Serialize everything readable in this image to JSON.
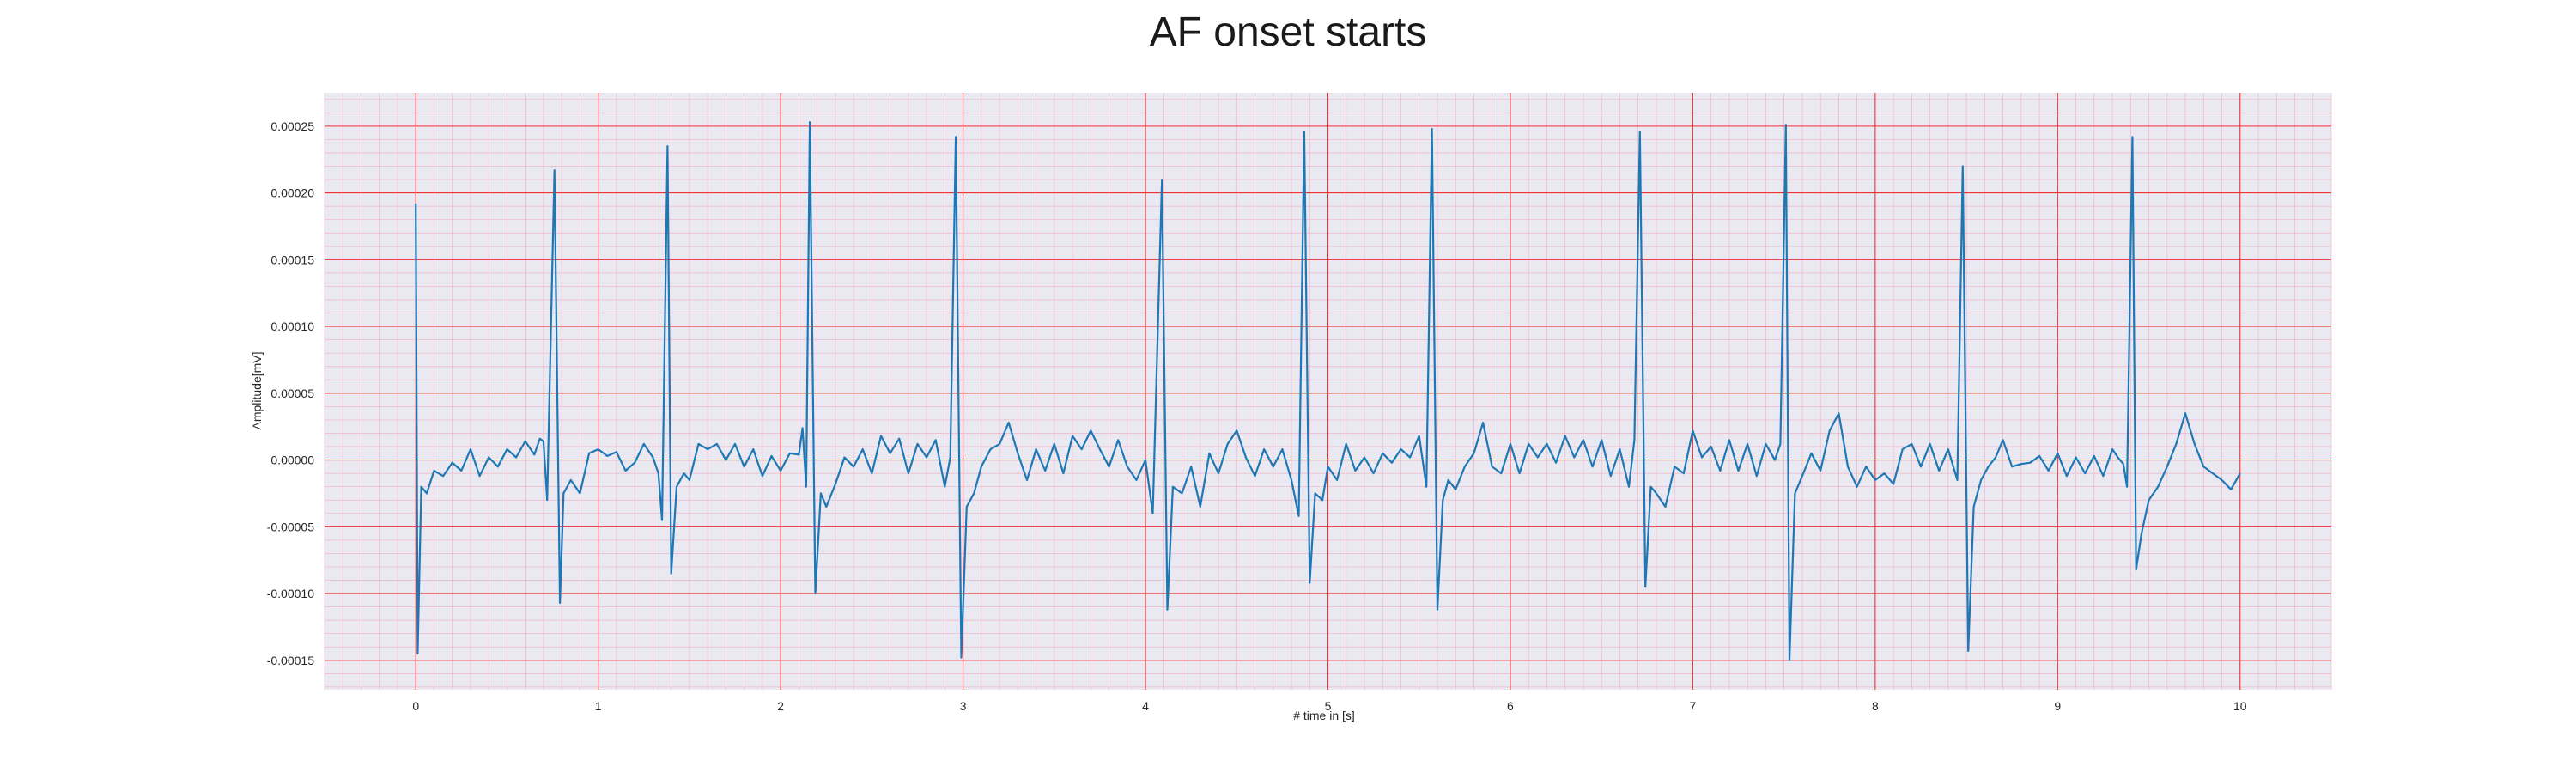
{
  "chart_data": {
    "type": "line",
    "title": "AF onset starts",
    "xlabel": "# time in [s]",
    "ylabel": "Amplitude[mV]",
    "xlim": [
      -0.5,
      10.5
    ],
    "ylim": [
      -0.000172,
      0.000275
    ],
    "x_ticks": [
      0,
      1,
      2,
      3,
      4,
      5,
      6,
      7,
      8,
      9,
      10
    ],
    "x_tick_labels": [
      "0",
      "1",
      "2",
      "3",
      "4",
      "5",
      "6",
      "7",
      "8",
      "9",
      "10"
    ],
    "y_ticks": [
      -0.00015,
      -0.0001,
      -5e-05,
      0.0,
      5e-05,
      0.0001,
      0.00015,
      0.0002,
      0.00025
    ],
    "y_tick_labels": [
      "-0.00015",
      "-0.00010",
      "-0.00005",
      "0.00000",
      "0.00005",
      "0.00010",
      "0.00015",
      "0.00020",
      "0.00025"
    ],
    "grid": {
      "major": true,
      "minor": true,
      "major_color": "#ee3333",
      "minor_color": "#f2a3b5",
      "background": "#eae9f2"
    },
    "colors": {
      "line": "#1f77b4"
    },
    "series": [
      {
        "points": [
          [
            0.0,
            0.000192
          ],
          [
            0.01,
            -0.000145
          ],
          [
            0.03,
            -2e-05
          ],
          [
            0.06,
            -2.5e-05
          ],
          [
            0.1,
            -8e-06
          ],
          [
            0.15,
            -1.2e-05
          ],
          [
            0.2,
            -2e-06
          ],
          [
            0.25,
            -8e-06
          ],
          [
            0.3,
            8e-06
          ],
          [
            0.35,
            -1.2e-05
          ],
          [
            0.4,
            2e-06
          ],
          [
            0.45,
            -5e-06
          ],
          [
            0.5,
            8e-06
          ],
          [
            0.55,
            2e-06
          ],
          [
            0.6,
            1.4e-05
          ],
          [
            0.65,
            4e-06
          ],
          [
            0.68,
            1.6e-05
          ],
          [
            0.7,
            1.4e-05
          ],
          [
            0.72,
            -3e-05
          ],
          [
            0.76,
            0.000217
          ],
          [
            0.79,
            -0.000107
          ],
          [
            0.81,
            -2.5e-05
          ],
          [
            0.85,
            -1.5e-05
          ],
          [
            0.9,
            -2.5e-05
          ],
          [
            0.95,
            5e-06
          ],
          [
            1.0,
            8e-06
          ],
          [
            1.05,
            3e-06
          ],
          [
            1.1,
            6e-06
          ],
          [
            1.15,
            -8e-06
          ],
          [
            1.2,
            -2e-06
          ],
          [
            1.25,
            1.2e-05
          ],
          [
            1.3,
            2e-06
          ],
          [
            1.33,
            -1e-05
          ],
          [
            1.35,
            -4.5e-05
          ],
          [
            1.38,
            0.000235
          ],
          [
            1.4,
            -8.5e-05
          ],
          [
            1.43,
            -2e-05
          ],
          [
            1.47,
            -1e-05
          ],
          [
            1.5,
            -1.5e-05
          ],
          [
            1.55,
            1.2e-05
          ],
          [
            1.6,
            8e-06
          ],
          [
            1.65,
            1.2e-05
          ],
          [
            1.7,
            0.0
          ],
          [
            1.75,
            1.2e-05
          ],
          [
            1.8,
            -5e-06
          ],
          [
            1.85,
            8e-06
          ],
          [
            1.9,
            -1.2e-05
          ],
          [
            1.95,
            3e-06
          ],
          [
            2.0,
            -8e-06
          ],
          [
            2.05,
            5e-06
          ],
          [
            2.1,
            4e-06
          ],
          [
            2.12,
            2.4e-05
          ],
          [
            2.14,
            -2e-05
          ],
          [
            2.16,
            0.000253
          ],
          [
            2.19,
            -0.0001
          ],
          [
            2.22,
            -2.5e-05
          ],
          [
            2.25,
            -3.5e-05
          ],
          [
            2.3,
            -1.8e-05
          ],
          [
            2.35,
            2e-06
          ],
          [
            2.4,
            -5e-06
          ],
          [
            2.45,
            8e-06
          ],
          [
            2.5,
            -1e-05
          ],
          [
            2.55,
            1.8e-05
          ],
          [
            2.6,
            5e-06
          ],
          [
            2.65,
            1.6e-05
          ],
          [
            2.7,
            -1e-05
          ],
          [
            2.75,
            1.2e-05
          ],
          [
            2.8,
            2e-06
          ],
          [
            2.85,
            1.5e-05
          ],
          [
            2.9,
            -2e-05
          ],
          [
            2.93,
            2e-06
          ],
          [
            2.96,
            0.000242
          ],
          [
            2.99,
            -0.000148
          ],
          [
            3.02,
            -3.5e-05
          ],
          [
            3.06,
            -2.5e-05
          ],
          [
            3.1,
            -5e-06
          ],
          [
            3.15,
            8e-06
          ],
          [
            3.2,
            1.2e-05
          ],
          [
            3.25,
            2.8e-05
          ],
          [
            3.3,
            5e-06
          ],
          [
            3.35,
            -1.5e-05
          ],
          [
            3.4,
            8e-06
          ],
          [
            3.45,
            -8e-06
          ],
          [
            3.5,
            1.2e-05
          ],
          [
            3.55,
            -1e-05
          ],
          [
            3.6,
            1.8e-05
          ],
          [
            3.65,
            8e-06
          ],
          [
            3.7,
            2.2e-05
          ],
          [
            3.75,
            8e-06
          ],
          [
            3.8,
            -5e-06
          ],
          [
            3.85,
            1.5e-05
          ],
          [
            3.9,
            -5e-06
          ],
          [
            3.95,
            -1.5e-05
          ],
          [
            4.0,
            0.0
          ],
          [
            4.04,
            -4e-05
          ],
          [
            4.09,
            0.00021
          ],
          [
            4.12,
            -0.000112
          ],
          [
            4.15,
            -2e-05
          ],
          [
            4.2,
            -2.5e-05
          ],
          [
            4.25,
            -5e-06
          ],
          [
            4.3,
            -3.5e-05
          ],
          [
            4.35,
            5e-06
          ],
          [
            4.4,
            -1e-05
          ],
          [
            4.45,
            1.2e-05
          ],
          [
            4.5,
            2.2e-05
          ],
          [
            4.55,
            2e-06
          ],
          [
            4.6,
            -1.2e-05
          ],
          [
            4.65,
            8e-06
          ],
          [
            4.7,
            -5e-06
          ],
          [
            4.75,
            8e-06
          ],
          [
            4.8,
            -1.5e-05
          ],
          [
            4.84,
            -4.2e-05
          ],
          [
            4.87,
            0.000246
          ],
          [
            4.9,
            -9.2e-05
          ],
          [
            4.93,
            -2.5e-05
          ],
          [
            4.97,
            -3e-05
          ],
          [
            5.0,
            -5e-06
          ],
          [
            5.05,
            -1.5e-05
          ],
          [
            5.1,
            1.2e-05
          ],
          [
            5.15,
            -8e-06
          ],
          [
            5.2,
            2e-06
          ],
          [
            5.25,
            -1e-05
          ],
          [
            5.3,
            5e-06
          ],
          [
            5.35,
            -2e-06
          ],
          [
            5.4,
            8e-06
          ],
          [
            5.45,
            2e-06
          ],
          [
            5.5,
            1.8e-05
          ],
          [
            5.54,
            -2e-05
          ],
          [
            5.57,
            0.000248
          ],
          [
            5.6,
            -0.000112
          ],
          [
            5.63,
            -3e-05
          ],
          [
            5.66,
            -1.5e-05
          ],
          [
            5.7,
            -2.2e-05
          ],
          [
            5.75,
            -5e-06
          ],
          [
            5.8,
            5e-06
          ],
          [
            5.85,
            2.8e-05
          ],
          [
            5.9,
            -5e-06
          ],
          [
            5.95,
            -1e-05
          ],
          [
            6.0,
            1.2e-05
          ],
          [
            6.05,
            -1e-05
          ],
          [
            6.1,
            1.2e-05
          ],
          [
            6.15,
            2e-06
          ],
          [
            6.2,
            1.2e-05
          ],
          [
            6.25,
            -2e-06
          ],
          [
            6.3,
            1.8e-05
          ],
          [
            6.35,
            2e-06
          ],
          [
            6.4,
            1.5e-05
          ],
          [
            6.45,
            -5e-06
          ],
          [
            6.5,
            1.5e-05
          ],
          [
            6.55,
            -1.2e-05
          ],
          [
            6.6,
            8e-06
          ],
          [
            6.65,
            -2e-05
          ],
          [
            6.68,
            1.5e-05
          ],
          [
            6.71,
            0.000246
          ],
          [
            6.74,
            -9.5e-05
          ],
          [
            6.77,
            -2e-05
          ],
          [
            6.8,
            -2.5e-05
          ],
          [
            6.85,
            -3.5e-05
          ],
          [
            6.9,
            -5e-06
          ],
          [
            6.95,
            -1e-05
          ],
          [
            7.0,
            2.2e-05
          ],
          [
            7.05,
            2e-06
          ],
          [
            7.1,
            1e-05
          ],
          [
            7.15,
            -8e-06
          ],
          [
            7.2,
            1.5e-05
          ],
          [
            7.25,
            -8e-06
          ],
          [
            7.3,
            1.2e-05
          ],
          [
            7.35,
            -1.2e-05
          ],
          [
            7.4,
            1.2e-05
          ],
          [
            7.45,
            0.0
          ],
          [
            7.48,
            1.2e-05
          ],
          [
            7.51,
            0.000251
          ],
          [
            7.53,
            -0.00015
          ],
          [
            7.56,
            -2.5e-05
          ],
          [
            7.6,
            -1.2e-05
          ],
          [
            7.65,
            5e-06
          ],
          [
            7.7,
            -8e-06
          ],
          [
            7.75,
            2.2e-05
          ],
          [
            7.8,
            3.5e-05
          ],
          [
            7.85,
            -5e-06
          ],
          [
            7.9,
            -2e-05
          ],
          [
            7.95,
            -5e-06
          ],
          [
            8.0,
            -1.5e-05
          ],
          [
            8.05,
            -1e-05
          ],
          [
            8.1,
            -1.8e-05
          ],
          [
            8.15,
            8e-06
          ],
          [
            8.2,
            1.2e-05
          ],
          [
            8.25,
            -5e-06
          ],
          [
            8.3,
            1.2e-05
          ],
          [
            8.35,
            -8e-06
          ],
          [
            8.4,
            8e-06
          ],
          [
            8.45,
            -1.5e-05
          ],
          [
            8.48,
            0.00022
          ],
          [
            8.51,
            -0.000143
          ],
          [
            8.54,
            -3.5e-05
          ],
          [
            8.58,
            -1.5e-05
          ],
          [
            8.62,
            -5e-06
          ],
          [
            8.66,
            2e-06
          ],
          [
            8.7,
            1.5e-05
          ],
          [
            8.75,
            -5e-06
          ],
          [
            8.8,
            -3e-06
          ],
          [
            8.85,
            -2e-06
          ],
          [
            8.9,
            3e-06
          ],
          [
            8.95,
            -8e-06
          ],
          [
            9.0,
            5e-06
          ],
          [
            9.05,
            -1.2e-05
          ],
          [
            9.1,
            2e-06
          ],
          [
            9.15,
            -1e-05
          ],
          [
            9.2,
            3e-06
          ],
          [
            9.25,
            -1.2e-05
          ],
          [
            9.3,
            8e-06
          ],
          [
            9.33,
            2e-06
          ],
          [
            9.36,
            -3e-06
          ],
          [
            9.38,
            -2e-05
          ],
          [
            9.41,
            0.000242
          ],
          [
            9.43,
            -8.2e-05
          ],
          [
            9.46,
            -5.5e-05
          ],
          [
            9.5,
            -3e-05
          ],
          [
            9.55,
            -2e-05
          ],
          [
            9.6,
            -5e-06
          ],
          [
            9.65,
            1.2e-05
          ],
          [
            9.7,
            3.5e-05
          ],
          [
            9.75,
            1.2e-05
          ],
          [
            9.8,
            -5e-06
          ],
          [
            9.85,
            -1e-05
          ],
          [
            9.9,
            -1.5e-05
          ],
          [
            9.95,
            -2.2e-05
          ],
          [
            10.0,
            -1e-05
          ]
        ]
      }
    ]
  }
}
